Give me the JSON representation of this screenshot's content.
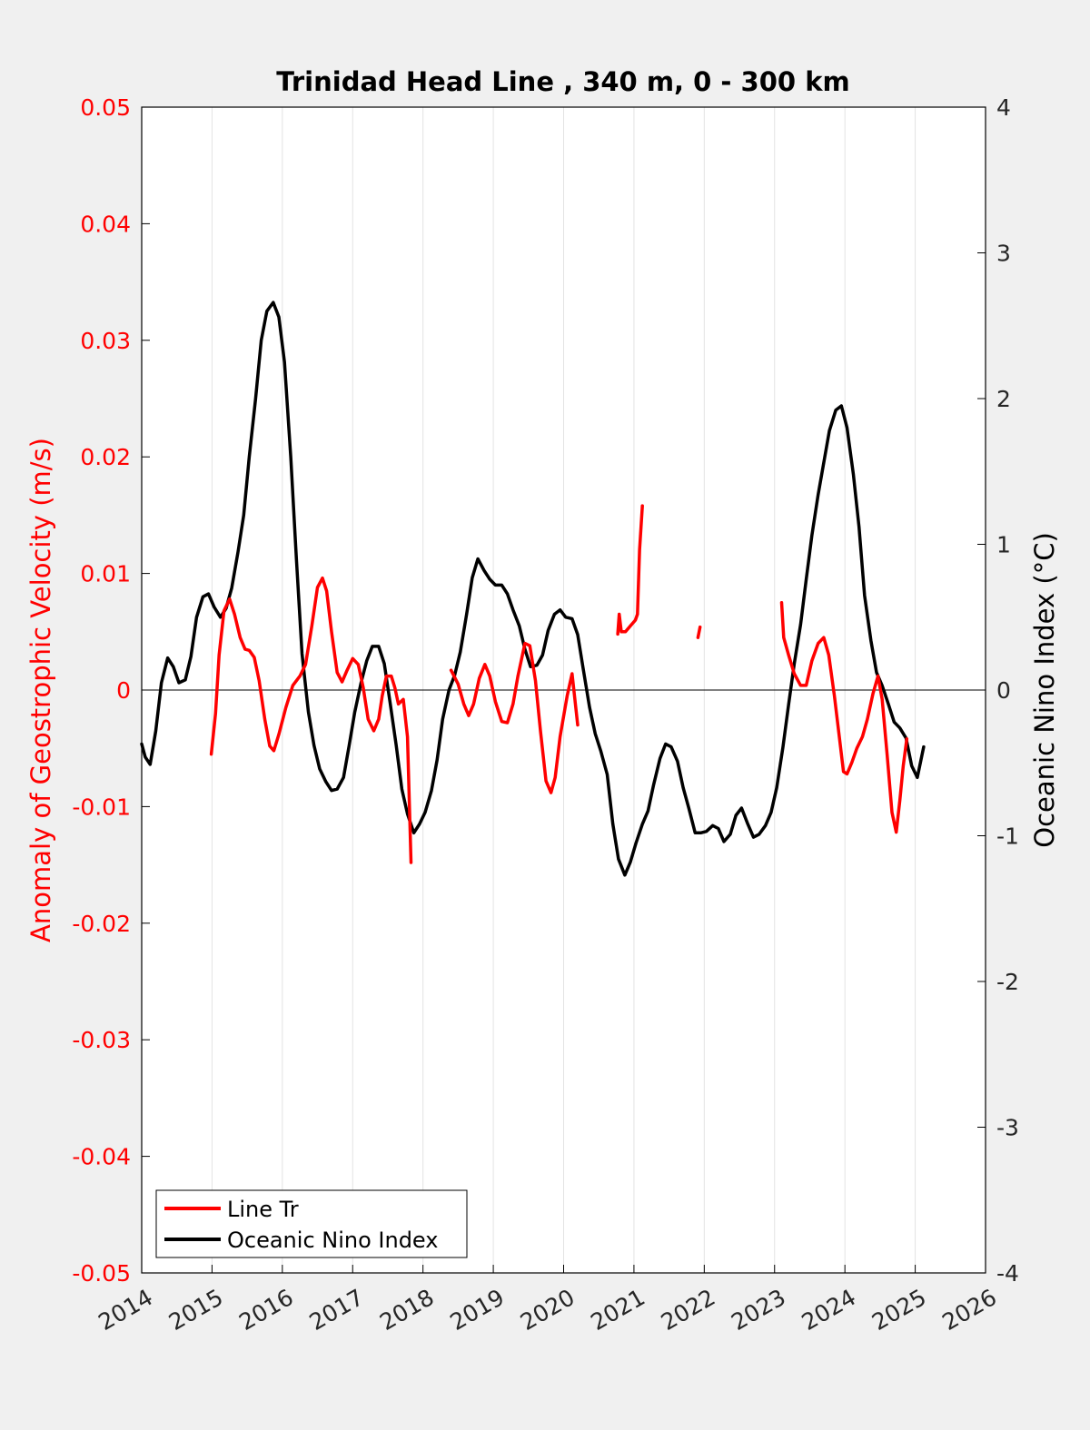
{
  "chart_data": {
    "type": "line",
    "title": "Trinidad Head Line , 340 m, 0 - 300 km",
    "xlabel": "",
    "ylabel_left": "Anomaly of Geostrophic Velocity (m/s)",
    "ylabel_right": "Oceanic Nino Index (°C)",
    "xlim": [
      2014,
      2026
    ],
    "ylim_left": [
      -0.05,
      0.05
    ],
    "ylim_right": [
      -4,
      4
    ],
    "x_ticks": [
      2014,
      2015,
      2016,
      2017,
      2018,
      2019,
      2020,
      2021,
      2022,
      2023,
      2024,
      2025,
      2026
    ],
    "x_tick_labels": [
      "2014",
      "2015",
      "2016",
      "2017",
      "2018",
      "2019",
      "2020",
      "2021",
      "2022",
      "2023",
      "2024",
      "2025",
      "2026"
    ],
    "y_left_ticks": [
      0.05,
      0.04,
      0.03,
      0.02,
      0.01,
      0,
      -0.01,
      -0.02,
      -0.03,
      -0.04,
      -0.05
    ],
    "y_left_tick_labels": [
      "0.05",
      "0.04",
      "0.03",
      "0.02",
      "0.01",
      "0",
      "-0.01",
      "-0.02",
      "-0.03",
      "-0.04",
      "-0.05"
    ],
    "y_right_ticks": [
      4,
      3,
      2,
      1,
      0,
      -1,
      -2,
      -3,
      -4
    ],
    "y_right_tick_labels": [
      "4",
      "3",
      "2",
      "1",
      "0",
      "-1",
      "-2",
      "-3",
      "-4"
    ],
    "grid": "vertical",
    "legend_position": "bottom-left",
    "series": [
      {
        "name": "Line Tr",
        "axis": "left",
        "color": "#ff0000",
        "segments": [
          [
            [
              2014.99,
              -0.0055
            ],
            [
              2015.05,
              -0.002
            ],
            [
              2015.1,
              0.003
            ],
            [
              2015.17,
              0.0068
            ],
            [
              2015.25,
              0.0078
            ],
            [
              2015.32,
              0.0065
            ],
            [
              2015.4,
              0.0045
            ],
            [
              2015.47,
              0.0035
            ],
            [
              2015.53,
              0.0034
            ],
            [
              2015.6,
              0.0028
            ],
            [
              2015.67,
              0.0008
            ],
            [
              2015.75,
              -0.0025
            ],
            [
              2015.82,
              -0.0048
            ],
            [
              2015.88,
              -0.0052
            ],
            [
              2015.95,
              -0.0038
            ],
            [
              2016.05,
              -0.0015
            ],
            [
              2016.15,
              0.0004
            ],
            [
              2016.25,
              0.0012
            ],
            [
              2016.33,
              0.0022
            ],
            [
              2016.42,
              0.0055
            ],
            [
              2016.5,
              0.0088
            ],
            [
              2016.57,
              0.0096
            ],
            [
              2016.63,
              0.0085
            ],
            [
              2016.7,
              0.005
            ],
            [
              2016.78,
              0.0015
            ],
            [
              2016.85,
              0.0007
            ],
            [
              2016.92,
              0.0017
            ],
            [
              2017.0,
              0.0027
            ],
            [
              2017.08,
              0.0022
            ],
            [
              2017.15,
              0.0002
            ],
            [
              2017.22,
              -0.0025
            ],
            [
              2017.3,
              -0.0035
            ],
            [
              2017.37,
              -0.0025
            ],
            [
              2017.42,
              -0.0005
            ],
            [
              2017.48,
              0.0012
            ],
            [
              2017.55,
              0.0012
            ],
            [
              2017.6,
              0.0002
            ],
            [
              2017.65,
              -0.0012
            ],
            [
              2017.72,
              -0.0008
            ],
            [
              2017.78,
              -0.004
            ],
            [
              2017.83,
              -0.0148
            ]
          ],
          [
            [
              2018.4,
              0.0017
            ],
            [
              2018.5,
              0.0005
            ],
            [
              2018.58,
              -0.0012
            ],
            [
              2018.65,
              -0.0022
            ],
            [
              2018.72,
              -0.0012
            ],
            [
              2018.8,
              0.001
            ],
            [
              2018.88,
              0.0022
            ],
            [
              2018.95,
              0.0012
            ],
            [
              2019.03,
              -0.001
            ],
            [
              2019.12,
              -0.0027
            ],
            [
              2019.2,
              -0.0028
            ],
            [
              2019.28,
              -0.0012
            ],
            [
              2019.35,
              0.0012
            ],
            [
              2019.45,
              0.004
            ],
            [
              2019.52,
              0.0038
            ],
            [
              2019.6,
              0.0008
            ],
            [
              2019.67,
              -0.0035
            ],
            [
              2019.75,
              -0.0078
            ],
            [
              2019.82,
              -0.0088
            ],
            [
              2019.88,
              -0.0075
            ],
            [
              2019.95,
              -0.004
            ],
            [
              2020.05,
              -0.0005
            ],
            [
              2020.12,
              0.0014
            ],
            [
              2020.2,
              -0.003
            ]
          ],
          [
            [
              2020.77,
              0.0048
            ],
            [
              2020.79,
              0.0065
            ],
            [
              2020.82,
              0.005
            ],
            [
              2020.88,
              0.005
            ],
            [
              2020.95,
              0.0055
            ],
            [
              2021.02,
              0.006
            ],
            [
              2021.05,
              0.0065
            ],
            [
              2021.08,
              0.012
            ],
            [
              2021.12,
              0.0158
            ]
          ],
          [
            [
              2021.91,
              0.0045
            ],
            [
              2021.94,
              0.0054
            ]
          ],
          [
            [
              2023.1,
              0.0075
            ],
            [
              2023.13,
              0.0045
            ],
            [
              2023.2,
              0.003
            ],
            [
              2023.28,
              0.0014
            ],
            [
              2023.37,
              0.0004
            ],
            [
              2023.45,
              0.0004
            ],
            [
              2023.53,
              0.0025
            ],
            [
              2023.62,
              0.004
            ],
            [
              2023.7,
              0.0045
            ],
            [
              2023.77,
              0.003
            ],
            [
              2023.85,
              -0.0005
            ],
            [
              2023.92,
              -0.004
            ],
            [
              2023.98,
              -0.007
            ],
            [
              2024.03,
              -0.0072
            ],
            [
              2024.1,
              -0.0062
            ],
            [
              2024.17,
              -0.005
            ],
            [
              2024.25,
              -0.004
            ],
            [
              2024.32,
              -0.0025
            ],
            [
              2024.4,
              -0.0003
            ],
            [
              2024.47,
              0.0012
            ],
            [
              2024.53,
              -0.0008
            ],
            [
              2024.6,
              -0.0055
            ],
            [
              2024.67,
              -0.0105
            ],
            [
              2024.73,
              -0.0122
            ],
            [
              2024.78,
              -0.0095
            ],
            [
              2024.83,
              -0.0065
            ],
            [
              2024.88,
              -0.0042
            ]
          ]
        ]
      },
      {
        "name": "Oceanic Nino Index",
        "axis": "right",
        "color": "#000000",
        "segments": [
          [
            [
              2014.0,
              -0.37
            ],
            [
              2014.05,
              -0.46
            ],
            [
              2014.12,
              -0.51
            ],
            [
              2014.2,
              -0.28
            ],
            [
              2014.28,
              0.05
            ],
            [
              2014.37,
              0.22
            ],
            [
              2014.45,
              0.16
            ],
            [
              2014.53,
              0.05
            ],
            [
              2014.62,
              0.07
            ],
            [
              2014.7,
              0.23
            ],
            [
              2014.78,
              0.5
            ],
            [
              2014.87,
              0.64
            ],
            [
              2014.95,
              0.66
            ],
            [
              2015.03,
              0.57
            ],
            [
              2015.12,
              0.5
            ],
            [
              2015.2,
              0.56
            ],
            [
              2015.28,
              0.7
            ],
            [
              2015.37,
              0.95
            ],
            [
              2015.45,
              1.2
            ],
            [
              2015.53,
              1.6
            ],
            [
              2015.62,
              2.0
            ],
            [
              2015.7,
              2.4
            ],
            [
              2015.78,
              2.6
            ],
            [
              2015.87,
              2.66
            ],
            [
              2015.95,
              2.56
            ],
            [
              2016.03,
              2.25
            ],
            [
              2016.12,
              1.6
            ],
            [
              2016.2,
              0.9
            ],
            [
              2016.28,
              0.25
            ],
            [
              2016.37,
              -0.15
            ],
            [
              2016.45,
              -0.38
            ],
            [
              2016.53,
              -0.54
            ],
            [
              2016.62,
              -0.63
            ],
            [
              2016.7,
              -0.69
            ],
            [
              2016.78,
              -0.68
            ],
            [
              2016.87,
              -0.6
            ],
            [
              2016.95,
              -0.38
            ],
            [
              2017.03,
              -0.15
            ],
            [
              2017.12,
              0.05
            ],
            [
              2017.2,
              0.2
            ],
            [
              2017.28,
              0.3
            ],
            [
              2017.37,
              0.3
            ],
            [
              2017.45,
              0.18
            ],
            [
              2017.53,
              -0.08
            ],
            [
              2017.62,
              -0.38
            ],
            [
              2017.7,
              -0.68
            ],
            [
              2017.78,
              -0.85
            ],
            [
              2017.87,
              -0.98
            ],
            [
              2017.95,
              -0.92
            ],
            [
              2018.03,
              -0.84
            ],
            [
              2018.12,
              -0.69
            ],
            [
              2018.2,
              -0.48
            ],
            [
              2018.28,
              -0.2
            ],
            [
              2018.37,
              0.0
            ],
            [
              2018.45,
              0.1
            ],
            [
              2018.53,
              0.26
            ],
            [
              2018.62,
              0.52
            ],
            [
              2018.7,
              0.77
            ],
            [
              2018.78,
              0.9
            ],
            [
              2018.87,
              0.82
            ],
            [
              2018.95,
              0.76
            ],
            [
              2019.03,
              0.72
            ],
            [
              2019.12,
              0.72
            ],
            [
              2019.2,
              0.66
            ],
            [
              2019.28,
              0.55
            ],
            [
              2019.37,
              0.44
            ],
            [
              2019.45,
              0.28
            ],
            [
              2019.53,
              0.16
            ],
            [
              2019.62,
              0.17
            ],
            [
              2019.7,
              0.24
            ],
            [
              2019.78,
              0.41
            ],
            [
              2019.87,
              0.52
            ],
            [
              2019.95,
              0.55
            ],
            [
              2020.03,
              0.5
            ],
            [
              2020.12,
              0.49
            ],
            [
              2020.2,
              0.38
            ],
            [
              2020.28,
              0.14
            ],
            [
              2020.37,
              -0.12
            ],
            [
              2020.45,
              -0.3
            ],
            [
              2020.53,
              -0.42
            ],
            [
              2020.62,
              -0.58
            ],
            [
              2020.7,
              -0.92
            ],
            [
              2020.78,
              -1.16
            ],
            [
              2020.87,
              -1.27
            ],
            [
              2020.95,
              -1.18
            ],
            [
              2021.03,
              -1.05
            ],
            [
              2021.12,
              -0.92
            ],
            [
              2021.2,
              -0.83
            ],
            [
              2021.28,
              -0.65
            ],
            [
              2021.37,
              -0.47
            ],
            [
              2021.45,
              -0.37
            ],
            [
              2021.53,
              -0.39
            ],
            [
              2021.62,
              -0.49
            ],
            [
              2021.7,
              -0.67
            ],
            [
              2021.78,
              -0.81
            ],
            [
              2021.87,
              -0.98
            ],
            [
              2021.95,
              -0.98
            ],
            [
              2022.03,
              -0.97
            ],
            [
              2022.12,
              -0.93
            ],
            [
              2022.2,
              -0.95
            ],
            [
              2022.28,
              -1.04
            ],
            [
              2022.37,
              -0.99
            ],
            [
              2022.45,
              -0.86
            ],
            [
              2022.53,
              -0.81
            ],
            [
              2022.62,
              -0.92
            ],
            [
              2022.7,
              -1.01
            ],
            [
              2022.78,
              -0.99
            ],
            [
              2022.87,
              -0.93
            ],
            [
              2022.95,
              -0.84
            ],
            [
              2023.03,
              -0.67
            ],
            [
              2023.12,
              -0.39
            ],
            [
              2023.2,
              -0.1
            ],
            [
              2023.28,
              0.18
            ],
            [
              2023.37,
              0.45
            ],
            [
              2023.45,
              0.76
            ],
            [
              2023.53,
              1.06
            ],
            [
              2023.62,
              1.34
            ],
            [
              2023.7,
              1.56
            ],
            [
              2023.78,
              1.78
            ],
            [
              2023.87,
              1.92
            ],
            [
              2023.95,
              1.95
            ],
            [
              2024.03,
              1.8
            ],
            [
              2024.12,
              1.48
            ],
            [
              2024.2,
              1.12
            ],
            [
              2024.28,
              0.65
            ],
            [
              2024.37,
              0.34
            ],
            [
              2024.45,
              0.12
            ],
            [
              2024.53,
              0.03
            ],
            [
              2024.62,
              -0.1
            ],
            [
              2024.7,
              -0.22
            ],
            [
              2024.78,
              -0.26
            ],
            [
              2024.87,
              -0.33
            ],
            [
              2024.95,
              -0.52
            ],
            [
              2025.03,
              -0.6
            ],
            [
              2025.12,
              -0.39
            ]
          ]
        ]
      }
    ]
  }
}
